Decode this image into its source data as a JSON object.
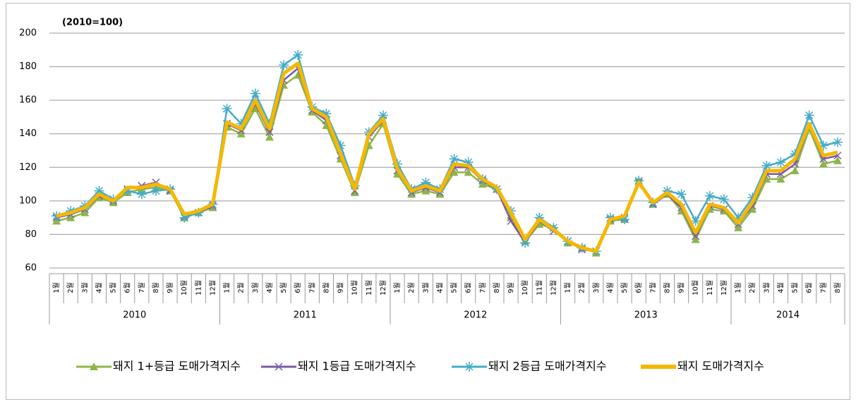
{
  "chart_data": {
    "type": "line",
    "title": "(2010=100)",
    "categories": [
      "1월",
      "2월",
      "3월",
      "4월",
      "5월",
      "6월",
      "7월",
      "8월",
      "9월",
      "10월",
      "11월",
      "12월",
      "1월",
      "2월",
      "3월",
      "4월",
      "5월",
      "6월",
      "7월",
      "8월",
      "9월",
      "10월",
      "11월",
      "12월",
      "1월",
      "2월",
      "3월",
      "4월",
      "5월",
      "6월",
      "7월",
      "8월",
      "9월",
      "10월",
      "11월",
      "12월",
      "1월",
      "2월",
      "3월",
      "4월",
      "5월",
      "6월",
      "7월",
      "8월",
      "9월",
      "10월",
      "11월",
      "12월",
      "1월",
      "2월",
      "3월",
      "4월",
      "5월",
      "6월",
      "7월",
      "8월"
    ],
    "years": [
      "2010",
      "2011",
      "2012",
      "2013",
      "2014"
    ],
    "ylim": [
      60,
      200
    ],
    "yticks": [
      60,
      80,
      100,
      120,
      140,
      160,
      180,
      200
    ],
    "grid": true,
    "series": [
      {
        "name": "돼지 1+등급 도매가격지수",
        "color": "#8db54a",
        "marker": "triangle",
        "values": [
          88,
          90,
          93,
          102,
          99,
          105,
          107,
          108,
          106,
          90,
          93,
          96,
          144,
          140,
          155,
          138,
          169,
          175,
          153,
          145,
          125,
          105,
          133,
          146,
          116,
          104,
          106,
          104,
          117,
          117,
          110,
          107,
          90,
          76,
          86,
          84,
          75,
          72,
          69,
          88,
          89,
          112,
          98,
          104,
          94,
          77,
          95,
          94,
          84,
          95,
          113,
          113,
          118,
          143,
          122,
          124
        ]
      },
      {
        "name": "돼지 1등급 도매가격지수",
        "color": "#7a5aa6",
        "marker": "x",
        "values": [
          90,
          92,
          95,
          103,
          100,
          107,
          109,
          111,
          106,
          91,
          93,
          97,
          146,
          142,
          158,
          141,
          172,
          179,
          154,
          148,
          127,
          106,
          138,
          148,
          118,
          105,
          108,
          105,
          120,
          120,
          112,
          107,
          88,
          75,
          88,
          82,
          76,
          71,
          70,
          89,
          90,
          111,
          98,
          104,
          96,
          79,
          97,
          95,
          86,
          97,
          116,
          116,
          122,
          145,
          125,
          127
        ]
      },
      {
        "name": "돼지 2등급 도매가격지수",
        "color": "#45abc8",
        "marker": "star",
        "values": [
          91,
          94,
          97,
          106,
          101,
          106,
          104,
          106,
          107,
          90,
          93,
          98,
          155,
          146,
          164,
          146,
          181,
          187,
          156,
          152,
          133,
          109,
          141,
          151,
          122,
          107,
          111,
          107,
          125,
          123,
          113,
          107,
          94,
          75,
          90,
          84,
          76,
          72,
          70,
          90,
          89,
          112,
          99,
          106,
          104,
          88,
          103,
          101,
          90,
          102,
          121,
          123,
          128,
          151,
          133,
          135
        ]
      },
      {
        "name": "돼지 도매가격지수",
        "color": "#f5b800",
        "marker": "none",
        "values": [
          91,
          93,
          96,
          104,
          100,
          108,
          108,
          110,
          107,
          92,
          94,
          98,
          147,
          143,
          160,
          143,
          176,
          182,
          155,
          150,
          128,
          107,
          140,
          149,
          119,
          106,
          109,
          106,
          122,
          121,
          113,
          108,
          93,
          77,
          89,
          83,
          76,
          72,
          70,
          89,
          91,
          111,
          99,
          105,
          98,
          81,
          98,
          96,
          87,
          99,
          118,
          118,
          125,
          146,
          127,
          129
        ]
      }
    ]
  }
}
